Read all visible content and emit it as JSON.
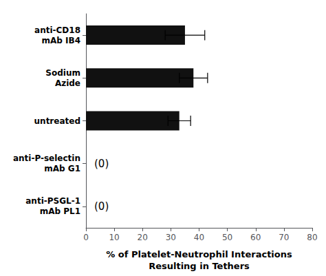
{
  "chart_data": {
    "type": "bar",
    "orientation": "horizontal",
    "categories": [
      "anti-CD18\nmAb IB4",
      "Sodium\nAzide",
      "untreated",
      "anti-P-selectin\nmAb G1",
      "anti-PSGL-1\nmAb PL1"
    ],
    "values": [
      35,
      38,
      33,
      0,
      0
    ],
    "errors": [
      7,
      5,
      4,
      0,
      0
    ],
    "color": "#111111",
    "xlabel": "% of Platelet-Neutrophil Interactions\nResulting in Tethers",
    "xlim": [
      0,
      80
    ],
    "xticks": [
      0,
      10,
      20,
      30,
      40,
      50,
      60,
      70,
      80
    ],
    "annotations": [
      {
        "text": "(0)",
        "category": "anti-P-selectin\nmAb G1"
      },
      {
        "text": "(0)",
        "category": "anti-PSGL-1\nmAb PL1"
      }
    ],
    "grid": false,
    "legend": false
  }
}
